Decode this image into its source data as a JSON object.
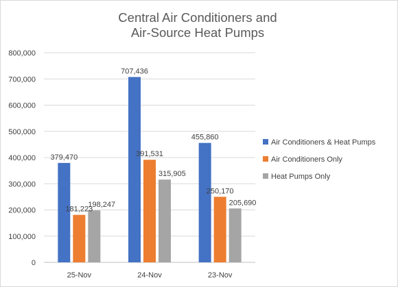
{
  "chart_data": {
    "type": "bar",
    "title": "Central Air Conditioners and Air-Source Heat Pumps",
    "title_lines": [
      "Central Air Conditioners and",
      "Air-Source Heat Pumps"
    ],
    "categories": [
      "25-Nov",
      "24-Nov",
      "23-Nov"
    ],
    "series": [
      {
        "name": "Air Conditioners & Heat Pumps",
        "color": "#4472c4",
        "values": [
          379470,
          707436,
          455860
        ],
        "labels": [
          "379,470",
          "707,436",
          "455,860"
        ]
      },
      {
        "name": "Air Conditioners Only",
        "color": "#ed7d31",
        "values": [
          181223,
          391531,
          250170
        ],
        "labels": [
          "181,223",
          "391,531",
          "250,170"
        ]
      },
      {
        "name": "Heat Pumps Only",
        "color": "#a5a5a5",
        "values": [
          198247,
          315905,
          205690
        ],
        "labels": [
          "198,247",
          "315,905",
          "205,690"
        ]
      }
    ],
    "ylim": [
      0,
      800000
    ],
    "yticks": [
      0,
      100000,
      200000,
      300000,
      400000,
      500000,
      600000,
      700000,
      800000
    ],
    "ytick_labels": [
      "0",
      "100,000",
      "200,000",
      "300,000",
      "400,000",
      "500,000",
      "600,000",
      "700,000",
      "800,000"
    ],
    "xlabel": "",
    "ylabel": "",
    "grid": true,
    "legend_position": "right"
  }
}
